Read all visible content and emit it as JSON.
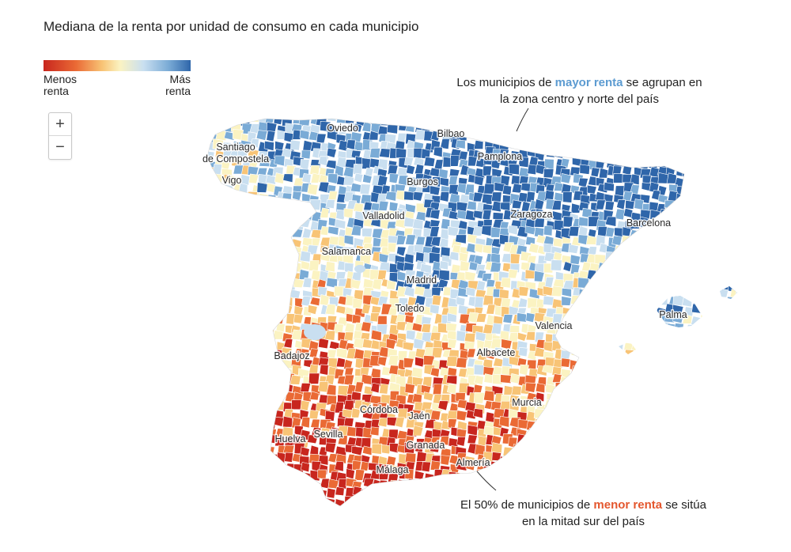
{
  "title": "Mediana de la renta por unidad de consumo en cada municipio",
  "legend": {
    "low_label": "Menos renta",
    "high_label": "Más renta",
    "colors": [
      "#c8261e",
      "#ea6a35",
      "#f8c476",
      "#fbf3c2",
      "#c9dff0",
      "#7aabd6",
      "#2f66aa"
    ]
  },
  "zoom": {
    "in_label": "+",
    "out_label": "−"
  },
  "cities": [
    "Oviedo",
    "Bilbao",
    "Santiago de Compostela",
    "Pamplona",
    "Vigo",
    "Burgos",
    "Valladolid",
    "Zaragoza",
    "Barcelona",
    "Salamanca",
    "Madrid",
    "Toledo",
    "Palma",
    "Valencia",
    "Badajoz",
    "Albacete",
    "Córdoba",
    "Jaén",
    "Murcia",
    "Sevilla",
    "Granada",
    "Huelva",
    "Almería",
    "Málaga"
  ],
  "annotations": {
    "north": {
      "before": "Los municipios de ",
      "highlight": "mayor renta",
      "after_line1": " se agrupan en",
      "line2": "la zona centro y norte del país"
    },
    "south": {
      "before": "El 50% de municipios de ",
      "highlight": "menor renta",
      "after_line1": " se sitúa",
      "line2": "en la mitad sur del país"
    }
  }
}
